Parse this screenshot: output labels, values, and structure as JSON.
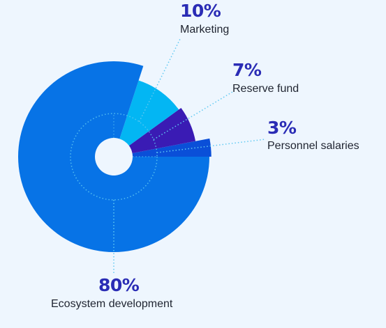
{
  "colors": {
    "background": "#eef6fe",
    "percent_text": "#2a2cb5",
    "label_text": "#1f2430",
    "leader": "#5fc9f2"
  },
  "chart_data": {
    "type": "pie",
    "title": "",
    "variant": "rose (radius varies by slice, donut hole)",
    "categories": [
      "Ecosystem development",
      "Marketing",
      "Reserve fund",
      "Personnel salaries"
    ],
    "values": [
      80,
      10,
      7,
      3
    ],
    "labels": [
      "80%",
      "10%",
      "7%",
      "3%"
    ],
    "colors": [
      "#0773e6",
      "#03b6f3",
      "#3a1bb4",
      "#0a4fd8"
    ],
    "relative_radius": [
      1.0,
      0.84,
      0.87,
      1.02
    ],
    "legend": "none (labels placed beside slices with dotted leader lines)"
  }
}
